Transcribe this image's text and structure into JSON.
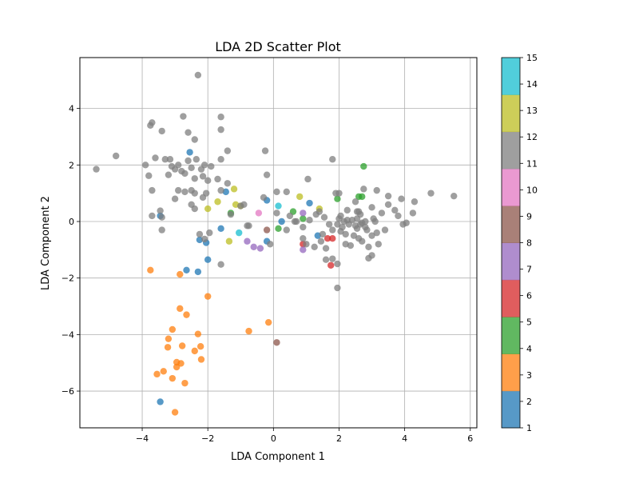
{
  "chart_data": {
    "type": "scatter",
    "title": "LDA 2D Scatter Plot",
    "xlabel": "LDA Component 1",
    "ylabel": "LDA Component 2",
    "xlim": [
      -5.9,
      6.2
    ],
    "ylim": [
      -7.3,
      5.8
    ],
    "xticks": [
      -4,
      -2,
      0,
      2,
      4,
      6
    ],
    "yticks": [
      -6,
      -4,
      -2,
      0,
      2,
      4
    ],
    "grid": true,
    "colorbar": {
      "min": 1,
      "max": 15,
      "ticks": [
        1,
        2,
        3,
        4,
        5,
        6,
        7,
        8,
        9,
        10,
        11,
        12,
        13,
        14,
        15
      ],
      "colors": [
        "#1f77b4",
        "#ff7f0e",
        "#2ca02c",
        "#d62728",
        "#9467bd",
        "#8c564b",
        "#e377c2",
        "#7f7f7f",
        "#bcbd22",
        "#17becf"
      ]
    },
    "series": [
      {
        "color": "#ff7f0e",
        "points": [
          [
            -3.75,
            -1.72
          ],
          [
            -2.85,
            -1.87
          ],
          [
            -2.0,
            -2.65
          ],
          [
            -2.85,
            -3.08
          ],
          [
            -2.65,
            -3.3
          ],
          [
            -3.08,
            -3.82
          ],
          [
            -2.3,
            -3.98
          ],
          [
            -0.75,
            -3.88
          ],
          [
            -0.15,
            -3.57
          ],
          [
            -3.2,
            -4.15
          ],
          [
            -2.78,
            -4.4
          ],
          [
            -3.22,
            -4.45
          ],
          [
            -2.22,
            -4.42
          ],
          [
            -2.4,
            -4.58
          ],
          [
            -2.2,
            -4.88
          ],
          [
            -2.95,
            -4.98
          ],
          [
            -2.95,
            -5.15
          ],
          [
            -2.82,
            -5.02
          ],
          [
            -3.35,
            -5.3
          ],
          [
            -3.55,
            -5.4
          ],
          [
            -3.08,
            -5.55
          ],
          [
            -2.7,
            -5.72
          ],
          [
            -3.0,
            -6.75
          ]
        ]
      },
      {
        "color": "#1f77b4",
        "points": [
          [
            -2.55,
            2.45
          ],
          [
            -3.45,
            0.2
          ],
          [
            -1.45,
            1.05
          ],
          [
            -0.2,
            0.75
          ],
          [
            0.25,
            0.0
          ],
          [
            -2.25,
            -0.65
          ],
          [
            -1.6,
            -0.25
          ],
          [
            -2.05,
            -0.75
          ],
          [
            -2.0,
            -1.35
          ],
          [
            -2.65,
            -1.72
          ],
          [
            -2.3,
            -1.78
          ],
          [
            -0.2,
            -0.7
          ],
          [
            1.35,
            -0.5
          ],
          [
            1.1,
            0.65
          ],
          [
            -3.45,
            -6.38
          ]
        ]
      },
      {
        "color": "#2ca02c",
        "points": [
          [
            -1.3,
            0.3
          ],
          [
            0.6,
            0.35
          ],
          [
            0.9,
            0.1
          ],
          [
            1.95,
            0.8
          ],
          [
            2.6,
            0.88
          ],
          [
            2.7,
            0.88
          ],
          [
            2.75,
            1.95
          ],
          [
            0.15,
            -0.25
          ]
        ]
      },
      {
        "color": "#d62728",
        "points": [
          [
            0.9,
            -0.8
          ],
          [
            1.65,
            -0.6
          ],
          [
            1.8,
            -0.6
          ],
          [
            1.75,
            -1.55
          ]
        ]
      },
      {
        "color": "#9467bd",
        "points": [
          [
            -0.8,
            -0.7
          ],
          [
            -0.6,
            -0.9
          ],
          [
            -0.4,
            -0.95
          ],
          [
            0.9,
            0.3
          ],
          [
            0.9,
            -1.0
          ]
        ]
      },
      {
        "color": "#8c564b",
        "points": [
          [
            -0.2,
            -0.3
          ],
          [
            0.1,
            -4.28
          ]
        ]
      },
      {
        "color": "#e377c2",
        "points": [
          [
            -0.45,
            0.3
          ]
        ]
      },
      {
        "color": "#bcbd22",
        "points": [
          [
            -2.0,
            0.45
          ],
          [
            -1.7,
            0.7
          ],
          [
            -1.2,
            1.15
          ],
          [
            -1.0,
            0.55
          ],
          [
            -1.35,
            -0.7
          ],
          [
            -1.15,
            0.6
          ],
          [
            0.8,
            0.88
          ],
          [
            1.4,
            0.45
          ]
        ]
      },
      {
        "color": "#17becf",
        "points": [
          [
            -1.05,
            -0.4
          ],
          [
            0.15,
            0.55
          ]
        ]
      },
      {
        "color": "#7f7f7f",
        "points": [
          [
            -5.4,
            1.85
          ],
          [
            -4.8,
            2.32
          ],
          [
            -3.9,
            2.0
          ],
          [
            -3.8,
            1.62
          ],
          [
            -3.75,
            3.4
          ],
          [
            -3.7,
            3.5
          ],
          [
            -3.6,
            2.25
          ],
          [
            -3.4,
            3.2
          ],
          [
            -3.3,
            2.2
          ],
          [
            -3.2,
            1.65
          ],
          [
            -3.1,
            1.95
          ],
          [
            -3.15,
            2.2
          ],
          [
            -3.0,
            1.85
          ],
          [
            -2.9,
            2.0
          ],
          [
            -2.8,
            1.78
          ],
          [
            -2.7,
            1.7
          ],
          [
            -2.75,
            3.72
          ],
          [
            -2.6,
            3.15
          ],
          [
            -2.6,
            2.15
          ],
          [
            -2.5,
            1.9
          ],
          [
            -2.4,
            2.9
          ],
          [
            -2.35,
            2.2
          ],
          [
            -2.2,
            1.85
          ],
          [
            -2.1,
            2.0
          ],
          [
            -2.3,
            5.18
          ],
          [
            -2.4,
            1.52
          ],
          [
            -2.15,
            1.6
          ],
          [
            -2.0,
            1.45
          ],
          [
            -1.9,
            1.95
          ],
          [
            -2.05,
            1.0
          ],
          [
            -2.15,
            0.85
          ],
          [
            -2.4,
            1.0
          ],
          [
            -2.5,
            1.1
          ],
          [
            -2.7,
            1.05
          ],
          [
            -2.9,
            1.1
          ],
          [
            -3.0,
            0.8
          ],
          [
            -2.5,
            0.6
          ],
          [
            -2.4,
            0.45
          ],
          [
            -1.6,
            3.7
          ],
          [
            -1.6,
            3.25
          ],
          [
            -1.4,
            2.5
          ],
          [
            -1.6,
            2.2
          ],
          [
            -1.7,
            1.5
          ],
          [
            -1.4,
            1.35
          ],
          [
            -1.6,
            1.1
          ],
          [
            -1.3,
            0.25
          ],
          [
            -1.0,
            0.55
          ],
          [
            -3.7,
            1.1
          ],
          [
            -3.45,
            0.38
          ],
          [
            -3.4,
            0.15
          ],
          [
            -3.4,
            -0.3
          ],
          [
            -3.7,
            0.2
          ],
          [
            -2.25,
            -0.45
          ],
          [
            -2.1,
            -0.62
          ],
          [
            -1.95,
            -0.4
          ],
          [
            -1.6,
            -1.52
          ],
          [
            -0.8,
            -0.15
          ],
          [
            -0.9,
            0.6
          ],
          [
            -0.25,
            2.5
          ],
          [
            -0.3,
            0.85
          ],
          [
            -0.2,
            1.65
          ],
          [
            0.1,
            1.05
          ],
          [
            0.4,
            1.05
          ],
          [
            0.1,
            0.3
          ],
          [
            0.5,
            0.2
          ],
          [
            0.65,
            0.0
          ],
          [
            0.7,
            0.0
          ],
          [
            1.05,
            1.5
          ],
          [
            1.3,
            0.25
          ],
          [
            1.55,
            0.15
          ],
          [
            1.4,
            0.35
          ],
          [
            1.1,
            0.05
          ],
          [
            0.9,
            -0.2
          ],
          [
            0.9,
            -0.6
          ],
          [
            1.0,
            -0.8
          ],
          [
            1.25,
            -0.9
          ],
          [
            1.45,
            -0.7
          ],
          [
            1.5,
            -0.45
          ],
          [
            1.6,
            -0.95
          ],
          [
            1.6,
            -1.35
          ],
          [
            1.8,
            -1.32
          ],
          [
            1.8,
            2.2
          ],
          [
            1.9,
            1.0
          ],
          [
            2.0,
            1.0
          ],
          [
            1.95,
            -1.5
          ],
          [
            1.95,
            -2.35
          ],
          [
            1.8,
            -0.3
          ],
          [
            1.95,
            -0.1
          ],
          [
            2.05,
            0.2
          ],
          [
            2.15,
            0.0
          ],
          [
            2.2,
            -0.45
          ],
          [
            2.25,
            0.4
          ],
          [
            2.3,
            -0.1
          ],
          [
            2.4,
            0.05
          ],
          [
            2.45,
            -0.5
          ],
          [
            2.5,
            0.7
          ],
          [
            2.55,
            -0.25
          ],
          [
            2.55,
            0.35
          ],
          [
            2.6,
            -0.6
          ],
          [
            2.65,
            0.25
          ],
          [
            2.7,
            -0.05
          ],
          [
            2.75,
            1.15
          ],
          [
            2.7,
            -0.7
          ],
          [
            2.8,
            0.0
          ],
          [
            2.85,
            -0.3
          ],
          [
            2.9,
            -1.3
          ],
          [
            3.0,
            -0.5
          ],
          [
            3.0,
            0.5
          ],
          [
            3.05,
            0.1
          ],
          [
            3.15,
            1.1
          ],
          [
            3.2,
            -0.8
          ],
          [
            3.3,
            0.3
          ],
          [
            3.4,
            -0.3
          ],
          [
            3.5,
            0.9
          ],
          [
            3.5,
            0.6
          ],
          [
            3.7,
            0.4
          ],
          [
            3.8,
            0.2
          ],
          [
            3.9,
            0.8
          ],
          [
            3.95,
            -0.1
          ],
          [
            4.05,
            -0.05
          ],
          [
            4.25,
            0.3
          ],
          [
            4.3,
            0.7
          ],
          [
            4.8,
            1.0
          ],
          [
            5.5,
            0.9
          ],
          [
            2.0,
            0.1
          ],
          [
            2.1,
            -0.2
          ],
          [
            2.2,
            -0.8
          ],
          [
            2.35,
            -0.85
          ],
          [
            2.5,
            -0.15
          ],
          [
            2.55,
            0.1
          ],
          [
            2.6,
            0.35
          ],
          [
            2.65,
            -0.1
          ],
          [
            2.8,
            -0.2
          ],
          [
            2.9,
            -0.9
          ],
          [
            3.0,
            -1.2
          ],
          [
            3.1,
            0.0
          ],
          [
            3.15,
            -0.4
          ],
          [
            2.25,
            0.05
          ],
          [
            2.05,
            -0.35
          ],
          [
            1.7,
            -0.1
          ],
          [
            -0.75,
            -0.15
          ],
          [
            -0.1,
            -0.8
          ],
          [
            0.4,
            -0.3
          ]
        ]
      }
    ]
  }
}
